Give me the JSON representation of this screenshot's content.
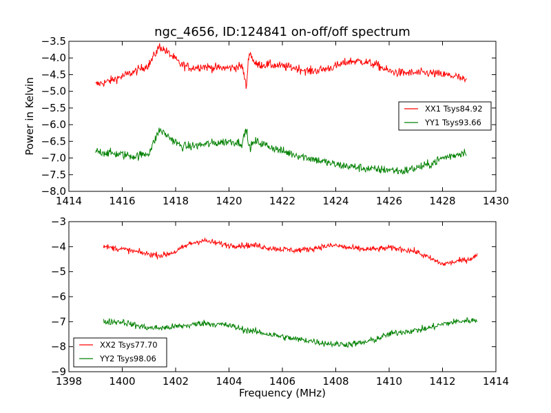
{
  "chart_data": [
    {
      "type": "line",
      "title": "ngc_4656, ID:124841 on-off/off spectrum",
      "xlabel": "",
      "ylabel": "Power in Kelvin",
      "xlim": [
        1414,
        1430
      ],
      "ylim": [
        -8.0,
        -3.5
      ],
      "xticks": [
        1414,
        1416,
        1418,
        1420,
        1422,
        1424,
        1426,
        1428,
        1430
      ],
      "yticks": [
        -8.0,
        -7.5,
        -7.0,
        -6.5,
        -6.0,
        -5.5,
        -5.0,
        -4.5,
        -4.0,
        -3.5
      ],
      "xtick_labels": [
        "1414",
        "1416",
        "1418",
        "1420",
        "1422",
        "1424",
        "1426",
        "1428",
        "1430"
      ],
      "ytick_labels": [
        "−8.0",
        "−7.5",
        "−7.0",
        "−6.5",
        "−6.0",
        "−5.5",
        "−5.0",
        "−4.5",
        "−4.0",
        "−3.5"
      ],
      "legend_position": "center-right",
      "grid": false,
      "series": [
        {
          "name": "XX1 Tsys84.92",
          "color": "#ff0000",
          "noise": 0.09,
          "x": [
            1415.0,
            1415.5,
            1416.0,
            1416.5,
            1417.0,
            1417.4,
            1417.8,
            1418.2,
            1418.6,
            1419.0,
            1419.5,
            1420.0,
            1420.5,
            1420.65,
            1420.75,
            1421.0,
            1421.5,
            1422.0,
            1422.5,
            1423.0,
            1423.5,
            1424.0,
            1424.5,
            1425.0,
            1425.5,
            1426.0,
            1426.5,
            1427.0,
            1427.5,
            1428.0,
            1428.5,
            1428.9
          ],
          "y": [
            -4.8,
            -4.7,
            -4.55,
            -4.4,
            -4.2,
            -3.65,
            -3.9,
            -4.2,
            -4.3,
            -4.25,
            -4.3,
            -4.3,
            -4.25,
            -4.9,
            -3.8,
            -4.2,
            -4.2,
            -4.25,
            -4.3,
            -4.4,
            -4.35,
            -4.25,
            -4.1,
            -4.1,
            -4.2,
            -4.4,
            -4.45,
            -4.45,
            -4.45,
            -4.5,
            -4.55,
            -4.7
          ]
        },
        {
          "name": "YY1 Tsys93.66",
          "color": "#008000",
          "noise": 0.09,
          "x": [
            1415.0,
            1415.5,
            1416.0,
            1416.5,
            1417.0,
            1417.4,
            1417.8,
            1418.2,
            1418.6,
            1419.0,
            1419.5,
            1420.0,
            1420.5,
            1420.65,
            1420.75,
            1421.0,
            1421.5,
            1422.0,
            1422.5,
            1423.0,
            1423.5,
            1424.0,
            1424.5,
            1425.0,
            1425.5,
            1426.0,
            1426.5,
            1427.0,
            1427.5,
            1428.0,
            1428.5,
            1428.9
          ],
          "y": [
            -6.8,
            -6.85,
            -6.9,
            -6.95,
            -6.85,
            -6.15,
            -6.4,
            -6.65,
            -6.65,
            -6.6,
            -6.55,
            -6.5,
            -6.55,
            -6.1,
            -6.7,
            -6.5,
            -6.65,
            -6.8,
            -6.9,
            -7.0,
            -7.1,
            -7.2,
            -7.25,
            -7.3,
            -7.35,
            -7.35,
            -7.4,
            -7.3,
            -7.2,
            -7.0,
            -6.9,
            -6.8
          ]
        }
      ]
    },
    {
      "type": "line",
      "title": "",
      "xlabel": "Frequency (MHz)",
      "ylabel": "",
      "xlim": [
        1398,
        1414
      ],
      "ylim": [
        -9,
        -3
      ],
      "xticks": [
        1398,
        1400,
        1402,
        1404,
        1406,
        1408,
        1410,
        1412,
        1414
      ],
      "yticks": [
        -9,
        -8,
        -7,
        -6,
        -5,
        -4,
        -3
      ],
      "xtick_labels": [
        "1398",
        "1400",
        "1402",
        "1404",
        "1406",
        "1408",
        "1410",
        "1412",
        "1414"
      ],
      "ytick_labels": [
        "−9",
        "−8",
        "−7",
        "−6",
        "−5",
        "−4",
        "−3"
      ],
      "legend_position": "lower-left",
      "grid": false,
      "series": [
        {
          "name": "XX2 Tsys77.70",
          "color": "#ff0000",
          "noise": 0.08,
          "x": [
            1399.3,
            1400.0,
            1400.5,
            1401.0,
            1401.5,
            1402.0,
            1402.5,
            1403.0,
            1403.5,
            1404.0,
            1404.5,
            1405.0,
            1405.5,
            1406.0,
            1406.5,
            1407.0,
            1407.5,
            1408.0,
            1408.5,
            1409.0,
            1409.5,
            1410.0,
            1410.5,
            1411.0,
            1411.5,
            1412.0,
            1412.5,
            1413.0,
            1413.3
          ],
          "y": [
            -4.0,
            -4.1,
            -4.2,
            -4.3,
            -4.35,
            -4.2,
            -3.9,
            -3.75,
            -3.85,
            -3.95,
            -3.95,
            -3.95,
            -4.05,
            -4.1,
            -4.15,
            -4.1,
            -4.0,
            -3.95,
            -4.05,
            -4.1,
            -4.1,
            -4.05,
            -4.1,
            -4.2,
            -4.45,
            -4.7,
            -4.6,
            -4.5,
            -4.35
          ]
        },
        {
          "name": "YY2 Tsys98.06",
          "color": "#008000",
          "noise": 0.09,
          "x": [
            1399.3,
            1400.0,
            1400.5,
            1401.0,
            1401.5,
            1402.0,
            1402.5,
            1403.0,
            1403.5,
            1404.0,
            1404.5,
            1405.0,
            1405.5,
            1406.0,
            1406.5,
            1407.0,
            1407.5,
            1408.0,
            1408.5,
            1409.0,
            1409.5,
            1410.0,
            1410.5,
            1411.0,
            1411.5,
            1412.0,
            1412.5,
            1413.0,
            1413.3
          ],
          "y": [
            -7.0,
            -7.0,
            -7.15,
            -7.25,
            -7.25,
            -7.2,
            -7.15,
            -7.05,
            -7.1,
            -7.15,
            -7.3,
            -7.4,
            -7.5,
            -7.6,
            -7.7,
            -7.75,
            -7.85,
            -7.9,
            -7.9,
            -7.85,
            -7.7,
            -7.5,
            -7.4,
            -7.35,
            -7.25,
            -7.1,
            -7.0,
            -6.95,
            -6.95
          ]
        }
      ]
    }
  ]
}
